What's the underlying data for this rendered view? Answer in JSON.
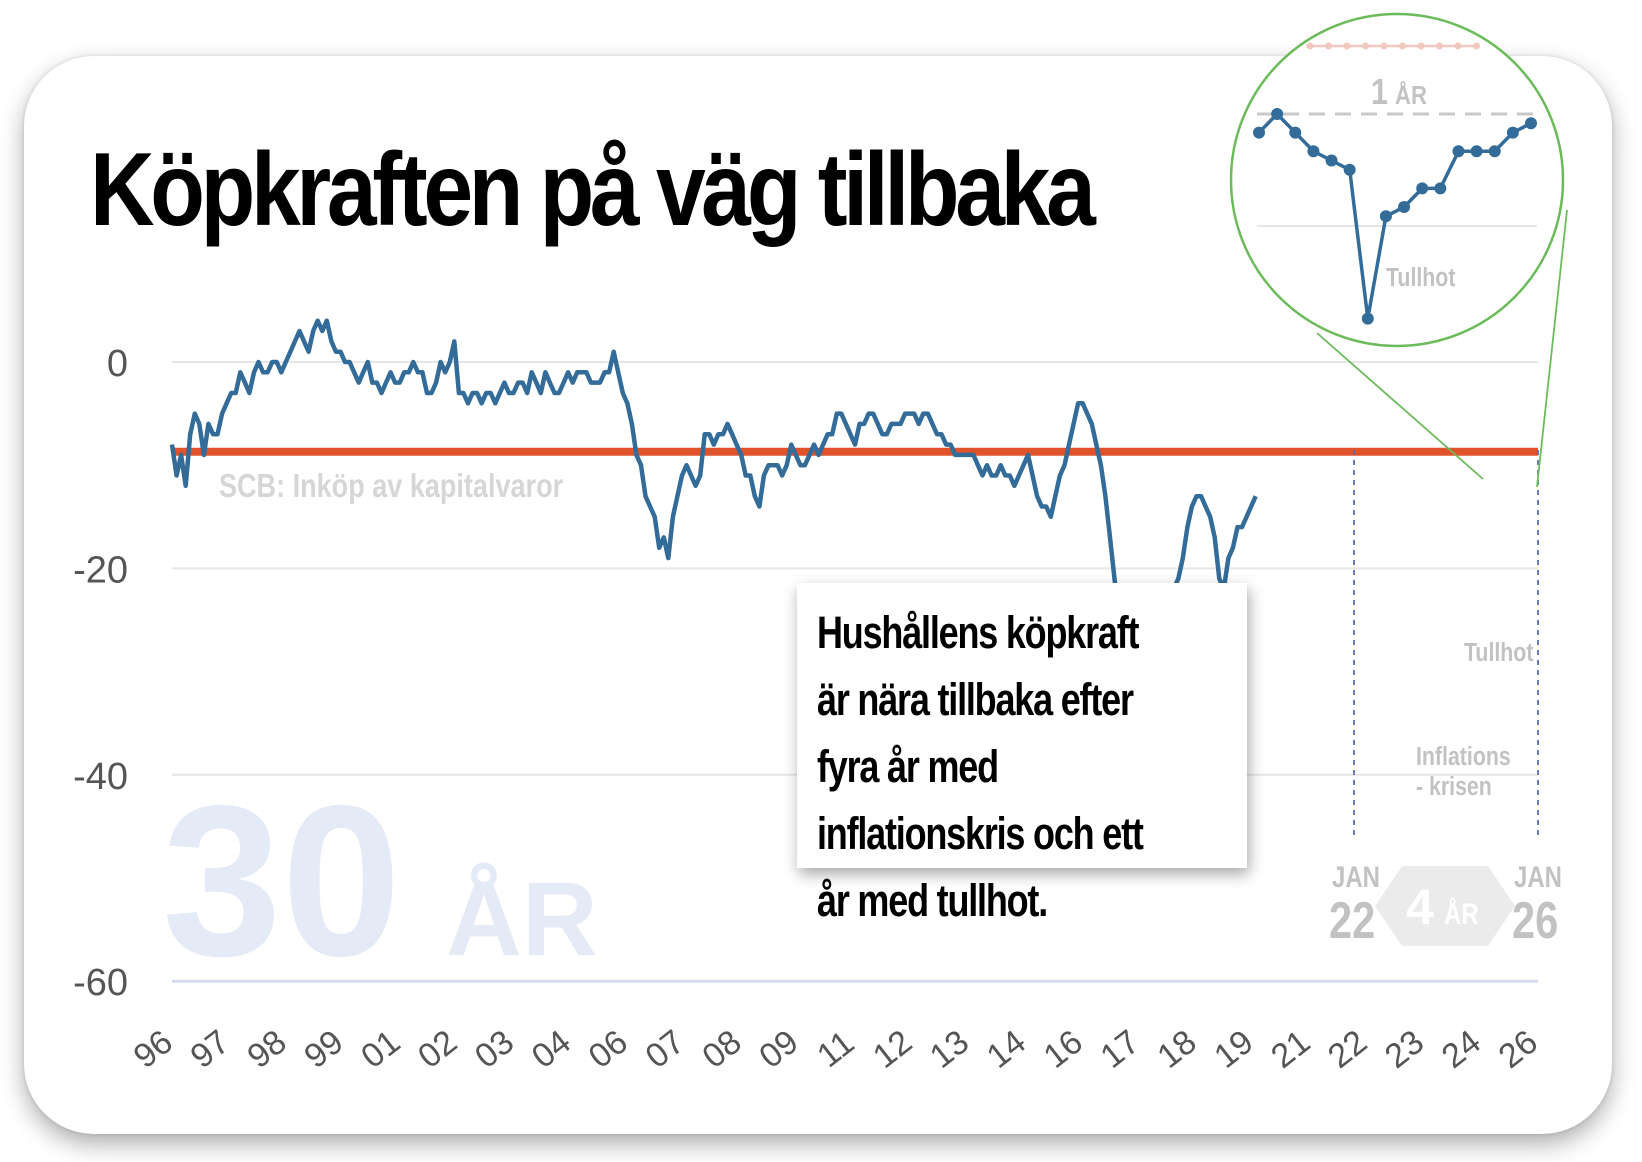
{
  "title": "Köpkraften på väg tillbaka",
  "colors": {
    "series": "#336c99",
    "reference": "#e0522a",
    "grid": "#e6e6e6",
    "axis_baseline": "#d4dbef",
    "watermark": "#e4ebf6",
    "muted_label": "#c2c2c2",
    "zoom_ring": "#6cbb5b",
    "period_marker": "#5a6bb8",
    "badge_fill": "#ebebeb"
  },
  "watermark": {
    "number": "30",
    "unit": "ÅR"
  },
  "annotation": "Hushållens köpkraft är nära tillbaka efter fyra år med inflationskris och ett år med tullhot.",
  "labels": {
    "source": "SCB: Inköp av kapitalvaror",
    "tullhot": "Tullhot",
    "inflation_line1": "Inflations",
    "inflation_line2": "- krisen"
  },
  "period_badge": {
    "start_month": "JAN",
    "start_year": "22",
    "duration_number": "4",
    "duration_unit": "ÅR",
    "end_month": "JAN",
    "end_year": "26"
  },
  "zoom": {
    "marker_label_number": "1",
    "marker_label_unit": "ÅR",
    "tullhot_label": "Tullhot",
    "values": [
      -6,
      -4,
      -6,
      -8,
      -9,
      -10,
      -26,
      -15,
      -14,
      -12,
      -12,
      -8,
      -8,
      -8,
      -6,
      -5
    ]
  },
  "chart_data": {
    "type": "line",
    "title": "Köpkraften på väg tillbaka",
    "xlabel": "",
    "ylabel": "",
    "ylim": [
      -60,
      5
    ],
    "xlim": [
      1996.0,
      2026.0
    ],
    "yticks": [
      0,
      -20,
      -40,
      -60
    ],
    "xtick_labels": [
      "96",
      "97",
      "98",
      "99",
      "01",
      "02",
      "03",
      "04",
      "06",
      "07",
      "08",
      "09",
      "11",
      "12",
      "13",
      "14",
      "16",
      "17",
      "18",
      "19",
      "21",
      "22",
      "23",
      "24",
      "26"
    ],
    "grid": true,
    "reference_line": {
      "value": -8.7,
      "color": "#e0522a"
    },
    "series": [
      {
        "name": "SCB: Inköp av kapitalvaror",
        "x_start": 1996.0,
        "step": 0.1,
        "values": [
          -8,
          -11,
          -9,
          -12,
          -7,
          -5,
          -6,
          -9,
          -6,
          -7,
          -7,
          -5,
          -4,
          -3,
          -3,
          -1,
          -2,
          -3,
          -1,
          0,
          -1,
          -1,
          0,
          0,
          -1,
          0,
          1,
          2,
          3,
          2,
          1,
          3,
          4,
          3,
          4,
          2,
          1,
          1,
          0,
          0,
          -1,
          -2,
          -1,
          0,
          -2,
          -2,
          -3,
          -2,
          -1,
          -2,
          -2,
          -1,
          -1,
          0,
          -1,
          -1,
          -3,
          -3,
          -2,
          0,
          -1,
          0,
          2,
          -3,
          -3,
          -4,
          -3,
          -3,
          -4,
          -3,
          -3,
          -4,
          -3,
          -2,
          -3,
          -3,
          -2,
          -2,
          -3,
          -1,
          -2,
          -3,
          -1,
          -2,
          -3,
          -3,
          -2,
          -1,
          -2,
          -1,
          -1,
          -1,
          -2,
          -2,
          -2,
          -1,
          -1,
          1,
          -1,
          -3,
          -4,
          -6,
          -9,
          -10,
          -13,
          -14,
          -15,
          -18,
          -17,
          -19,
          -15,
          -13,
          -11,
          -10,
          -11,
          -12,
          -11,
          -7,
          -7,
          -8,
          -7,
          -7,
          -6,
          -7,
          -8,
          -9,
          -11,
          -11,
          -13,
          -14,
          -11,
          -10,
          -10,
          -10,
          -11,
          -10,
          -8,
          -9,
          -10,
          -10,
          -9,
          -8,
          -9,
          -8,
          -7,
          -7,
          -5,
          -5,
          -6,
          -7,
          -8,
          -6,
          -6,
          -5,
          -5,
          -6,
          -7,
          -7,
          -6,
          -6,
          -6,
          -5,
          -5,
          -5,
          -6,
          -5,
          -5,
          -6,
          -7,
          -7,
          -8,
          -8,
          -9,
          -9,
          -9,
          -9,
          -9,
          -10,
          -11,
          -10,
          -11,
          -11,
          -10,
          -11,
          -11,
          -12,
          -11,
          -10,
          -9,
          -11,
          -13,
          -14,
          -14,
          -15,
          -13,
          -11,
          -10,
          -8,
          -6,
          -4,
          -4,
          -5,
          -6,
          -8,
          -10,
          -13,
          -17,
          -21,
          -25,
          -33,
          -38,
          -36,
          -40,
          -38,
          -34,
          -32,
          -31,
          -29,
          -27,
          -25,
          -22,
          -21,
          -19,
          -16,
          -14,
          -13,
          -13,
          -14,
          -15,
          -17,
          -21,
          -22,
          -19,
          -18,
          -16,
          -16,
          -15,
          -14,
          -13
        ]
      }
    ],
    "annotations": [
      "Tullhot",
      "Inflations - krisen",
      "SCB: Inköp av kapitalvaror"
    ]
  }
}
